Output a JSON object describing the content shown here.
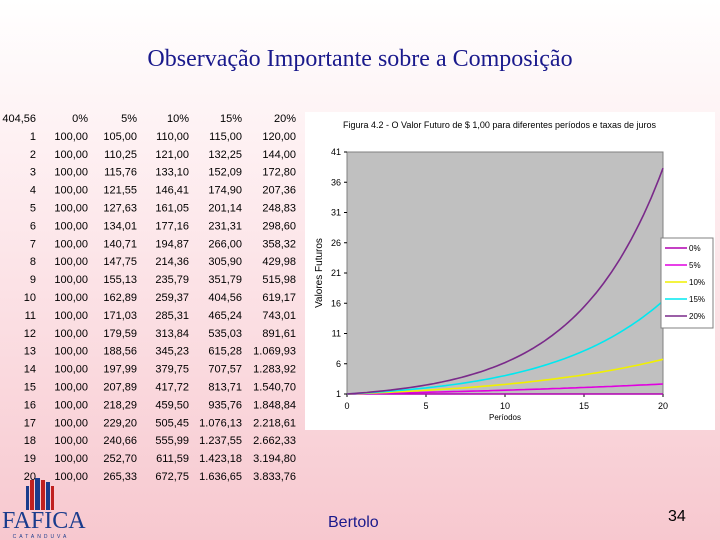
{
  "slide": {
    "title": "Observação Importante sobre a Composição",
    "footer_author": "Bertolo",
    "page_number": "34",
    "logo_name": "FAFICA",
    "logo_subtitle": "CATANDUVA"
  },
  "table": {
    "corner": "404,56",
    "headers": [
      "0%",
      "5%",
      "10%",
      "15%",
      "20%"
    ],
    "periods": [
      "1",
      "2",
      "3",
      "4",
      "5",
      "6",
      "7",
      "8",
      "9",
      "10",
      "11",
      "12",
      "13",
      "14",
      "15",
      "16",
      "17",
      "18",
      "19",
      "20"
    ],
    "rows": [
      [
        "100,00",
        "105,00",
        "110,00",
        "115,00",
        "120,00"
      ],
      [
        "100,00",
        "110,25",
        "121,00",
        "132,25",
        "144,00"
      ],
      [
        "100,00",
        "115,76",
        "133,10",
        "152,09",
        "172,80"
      ],
      [
        "100,00",
        "121,55",
        "146,41",
        "174,90",
        "207,36"
      ],
      [
        "100,00",
        "127,63",
        "161,05",
        "201,14",
        "248,83"
      ],
      [
        "100,00",
        "134,01",
        "177,16",
        "231,31",
        "298,60"
      ],
      [
        "100,00",
        "140,71",
        "194,87",
        "266,00",
        "358,32"
      ],
      [
        "100,00",
        "147,75",
        "214,36",
        "305,90",
        "429,98"
      ],
      [
        "100,00",
        "155,13",
        "235,79",
        "351,79",
        "515,98"
      ],
      [
        "100,00",
        "162,89",
        "259,37",
        "404,56",
        "619,17"
      ],
      [
        "100,00",
        "171,03",
        "285,31",
        "465,24",
        "743,01"
      ],
      [
        "100,00",
        "179,59",
        "313,84",
        "535,03",
        "891,61"
      ],
      [
        "100,00",
        "188,56",
        "345,23",
        "615,28",
        "1.069,93"
      ],
      [
        "100,00",
        "197,99",
        "379,75",
        "707,57",
        "1.283,92"
      ],
      [
        "100,00",
        "207,89",
        "417,72",
        "813,71",
        "1.540,70"
      ],
      [
        "100,00",
        "218,29",
        "459,50",
        "935,76",
        "1.848,84"
      ],
      [
        "100,00",
        "229,20",
        "505,45",
        "1.076,13",
        "2.218,61"
      ],
      [
        "100,00",
        "240,66",
        "555,99",
        "1.237,55",
        "2.662,33"
      ],
      [
        "100,00",
        "252,70",
        "611,59",
        "1.423,18",
        "3.194,80"
      ],
      [
        "100,00",
        "265,33",
        "672,75",
        "1.636,65",
        "3.833,76"
      ]
    ]
  },
  "chart_data": {
    "type": "line",
    "title": "Figura 4.2 - O Valor Futuro de $ 1,00 para diferentes períodos e taxas de juros",
    "xlabel": "Períodos",
    "ylabel": "Valores Futuros",
    "xlim": [
      0,
      20
    ],
    "ylim": [
      1,
      41
    ],
    "x_ticks": [
      "0",
      "5",
      "10",
      "15",
      "20"
    ],
    "y_ticks": [
      "1",
      "6",
      "11",
      "16",
      "21",
      "26",
      "31",
      "36",
      "41"
    ],
    "grid": false,
    "legend_position": "right",
    "rates": [
      0,
      0.05,
      0.1,
      0.15,
      0.2
    ],
    "series": [
      {
        "name": "0%",
        "color": "#b000b0"
      },
      {
        "name": "5%",
        "color": "#e000e0"
      },
      {
        "name": "10%",
        "color": "#f0f000"
      },
      {
        "name": "15%",
        "color": "#00e8f0"
      },
      {
        "name": "20%",
        "color": "#7a2a8a"
      }
    ],
    "plot_background": "#c0c0c0"
  }
}
